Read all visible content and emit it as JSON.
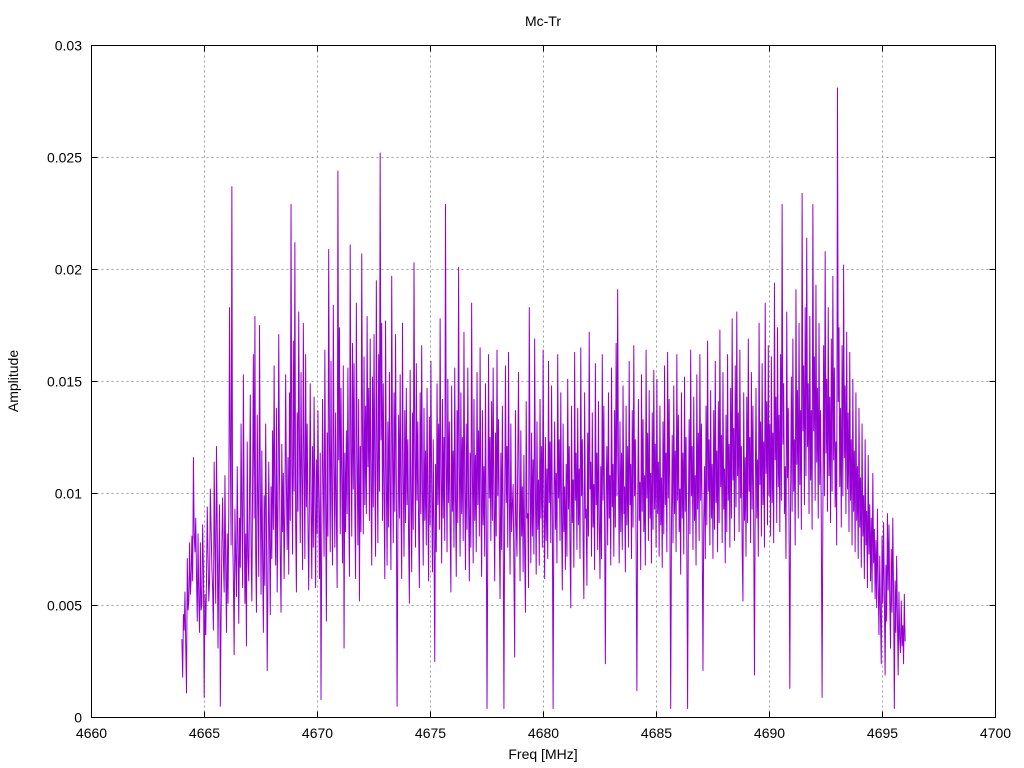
{
  "chart_data": {
    "type": "line",
    "title": "Mc-Tr",
    "xlabel": "Freq [MHz]",
    "ylabel": "Amplitude",
    "xlim": [
      4660,
      4700
    ],
    "ylim": [
      0,
      0.03
    ],
    "xticks": [
      4660,
      4665,
      4670,
      4675,
      4680,
      4685,
      4690,
      4695,
      4700
    ],
    "yticks": [
      0,
      0.005,
      0.01,
      0.015,
      0.02,
      0.025,
      0.03
    ],
    "xtick_labels": [
      "4660",
      "4665",
      "4670",
      "4675",
      "4680",
      "4685",
      "4690",
      "4695",
      "4700"
    ],
    "ytick_labels": [
      "0",
      "0.005",
      "0.01",
      "0.015",
      "0.02",
      "0.025",
      "0.03"
    ],
    "grid": true,
    "legend": "none",
    "line_color": "#9400d3",
    "series": [
      {
        "x_start": 4664.0,
        "x_end": 4696.0,
        "x_step": 0.02,
        "values": [
          0.0035,
          0.0018,
          0.0046,
          0.0039,
          0.0056,
          0.0032,
          0.0011,
          0.0071,
          0.0048,
          0.0052,
          0.0078,
          0.0055,
          0.0062,
          0.0081,
          0.0061,
          0.0116,
          0.0082,
          0.0074,
          0.0089,
          0.0063,
          0.0043,
          0.0082,
          0.0052,
          0.0038,
          0.0078,
          0.0048,
          0.0051,
          0.0086,
          0.0067,
          0.0009,
          0.0055,
          0.0037,
          0.0061,
          0.0094,
          0.0072,
          0.0052,
          0.0061,
          0.0102,
          0.0085,
          0.0067,
          0.0057,
          0.0039,
          0.0114,
          0.0078,
          0.0051,
          0.0121,
          0.0085,
          0.0031,
          0.0068,
          0.0095,
          0.0005,
          0.0045,
          0.0077,
          0.0098,
          0.0071,
          0.0056,
          0.0108,
          0.0068,
          0.0038,
          0.0082,
          0.0051,
          0.0091,
          0.0183,
          0.0121,
          0.0077,
          0.0237,
          0.0081,
          0.0062,
          0.0028,
          0.0093,
          0.0071,
          0.0054,
          0.0112,
          0.0078,
          0.0042,
          0.0089,
          0.0067,
          0.0131,
          0.0092,
          0.0058,
          0.0153,
          0.0095,
          0.0051,
          0.0082,
          0.0032,
          0.0123,
          0.0072,
          0.0061,
          0.0098,
          0.0144,
          0.0076,
          0.0052,
          0.0105,
          0.0162,
          0.0089,
          0.0179,
          0.0073,
          0.0047,
          0.0135,
          0.0097,
          0.0063,
          0.0175,
          0.0104,
          0.0055,
          0.0119,
          0.0072,
          0.0038,
          0.0099,
          0.0059,
          0.0131,
          0.0087,
          0.0021,
          0.0062,
          0.0114,
          0.0082,
          0.0046,
          0.0103,
          0.0071,
          0.0128,
          0.0084,
          0.0157,
          0.0096,
          0.0068,
          0.0138,
          0.0056,
          0.0095,
          0.0171,
          0.0108,
          0.0072,
          0.0047,
          0.0122,
          0.0083,
          0.0109,
          0.0062,
          0.0091,
          0.0153,
          0.0104,
          0.0075,
          0.0116,
          0.0064,
          0.0145,
          0.0088,
          0.0229,
          0.0112,
          0.0073,
          0.0168,
          0.0101,
          0.0212,
          0.0087,
          0.0056,
          0.0136,
          0.0092,
          0.0181,
          0.0121,
          0.0078,
          0.0154,
          0.0106,
          0.0066,
          0.0176,
          0.0115,
          0.0071,
          0.0162,
          0.0094,
          0.0131,
          0.0087,
          0.0057,
          0.0102,
          0.0149,
          0.0093,
          0.0062,
          0.0121,
          0.0076,
          0.0143,
          0.0098,
          0.0058,
          0.0115,
          0.0082,
          0.0137,
          0.0096,
          0.0062,
          0.0118,
          0.0008,
          0.0082,
          0.0142,
          0.0105,
          0.0072,
          0.0164,
          0.0098,
          0.0043,
          0.0127,
          0.0081,
          0.0209,
          0.0122,
          0.0074,
          0.0159,
          0.0097,
          0.0068,
          0.0184,
          0.0114,
          0.0076,
          0.0136,
          0.0091,
          0.0058,
          0.0244,
          0.0115,
          0.0174,
          0.0082,
          0.0147,
          0.0105,
          0.0069,
          0.0157,
          0.0031,
          0.0118,
          0.0083,
          0.0128,
          0.0091,
          0.0156,
          0.0097,
          0.0063,
          0.0211,
          0.0121,
          0.0081,
          0.0167,
          0.0102,
          0.0158,
          0.0094,
          0.0062,
          0.0185,
          0.0117,
          0.0077,
          0.0142,
          0.0052,
          0.0121,
          0.0083,
          0.0207,
          0.0128,
          0.0082,
          0.0161,
          0.0095,
          0.0139,
          0.0091,
          0.0179,
          0.0112,
          0.0147,
          0.0088,
          0.0169,
          0.0104,
          0.0068,
          0.0152,
          0.0094,
          0.0171,
          0.0109,
          0.0072,
          0.0195,
          0.0118,
          0.0078,
          0.0162,
          0.0101,
          0.0252,
          0.0124,
          0.0176,
          0.0088,
          0.0149,
          0.0098,
          0.0062,
          0.0177,
          0.0107,
          0.0068,
          0.0132,
          0.0085,
          0.0154,
          0.0099,
          0.0066,
          0.0197,
          0.0121,
          0.0078,
          0.0145,
          0.0092,
          0.0171,
          0.0106,
          0.0005,
          0.0082,
          0.0135,
          0.0089,
          0.0153,
          0.0094,
          0.0062,
          0.0176,
          0.0109,
          0.0072,
          0.0137,
          0.0087,
          0.0147,
          0.0095,
          0.0124,
          0.0079,
          0.0051,
          0.0155,
          0.0099,
          0.0065,
          0.0136,
          0.0084,
          0.0203,
          0.0118,
          0.0076,
          0.0158,
          0.0097,
          0.0132,
          0.0085,
          0.0058,
          0.0145,
          0.0091,
          0.0166,
          0.0101,
          0.0068,
          0.0138,
          0.0088,
          0.0119,
          0.0077,
          0.0147,
          0.0093,
          0.0061,
          0.0134,
          0.0086,
          0.0159,
          0.0102,
          0.0065,
          0.0124,
          0.0081,
          0.0025,
          0.0113,
          0.0074,
          0.0149,
          0.0095,
          0.0131,
          0.0084,
          0.0178,
          0.0108,
          0.0069,
          0.0142,
          0.0089,
          0.0125,
          0.0079,
          0.0229,
          0.0115,
          0.0074,
          0.0151,
          0.0096,
          0.0132,
          0.0085,
          0.0056,
          0.0148,
          0.0092,
          0.0119,
          0.0076,
          0.0156,
          0.0098,
          0.0063,
          0.0137,
          0.0087,
          0.0201,
          0.0113,
          0.0072,
          0.0145,
          0.0091,
          0.0125,
          0.0079,
          0.0172,
          0.0103,
          0.0066,
          0.0131,
          0.0084,
          0.0156,
          0.0096,
          0.0061,
          0.0118,
          0.0076,
          0.0185,
          0.0109,
          0.0069,
          0.0142,
          0.0088,
          0.0117,
          0.0074,
          0.0154,
          0.0095,
          0.0128,
          0.0081,
          0.0165,
          0.0099,
          0.0063,
          0.0137,
          0.0086,
          0.0112,
          0.0072,
          0.0149,
          0.0091,
          0.0004,
          0.0078,
          0.0162,
          0.0098,
          0.0125,
          0.0079,
          0.0141,
          0.0088,
          0.0156,
          0.0094,
          0.0061,
          0.0127,
          0.0081,
          0.0164,
          0.0099,
          0.0133,
          0.0084,
          0.0053,
          0.0118,
          0.0075,
          0.0139,
          0.0087,
          0.0004,
          0.0093,
          0.0157,
          0.0096,
          0.0121,
          0.0076,
          0.0163,
          0.0099,
          0.0064,
          0.0131,
          0.0083,
          0.0095,
          0.0104,
          0.0066,
          0.0027,
          0.0137,
          0.0087,
          0.0072,
          0.0114,
          0.0154,
          0.0095,
          0.0061,
          0.0128,
          0.0081,
          0.0103,
          0.0065,
          0.0117,
          0.0074,
          0.0047,
          0.0141,
          0.0089,
          0.0091,
          0.0058,
          0.0183,
          0.0108,
          0.0069,
          0.0127,
          0.0081,
          0.0115,
          0.0073,
          0.0169,
          0.0101,
          0.0064,
          0.0132,
          0.0084,
          0.0106,
          0.0068,
          0.0142,
          0.0089,
          0.0121,
          0.0076,
          0.0164,
          0.0098,
          0.0062,
          0.0125,
          0.0079,
          0.0111,
          0.0071,
          0.0159,
          0.0096,
          0.0123,
          0.0078,
          0.0148,
          0.0091,
          0.0004,
          0.0095,
          0.0132,
          0.0084,
          0.0109,
          0.0069,
          0.0162,
          0.0098,
          0.0124,
          0.0079,
          0.0145,
          0.0089,
          0.0057,
          0.0131,
          0.0083,
          0.0103,
          0.0066,
          0.0113,
          0.0072,
          0.0151,
          0.0093,
          0.0121,
          0.0076,
          0.0049,
          0.0139,
          0.0087,
          0.0106,
          0.0067,
          0.0163,
          0.0097,
          0.0118,
          0.0075,
          0.0138,
          0.0086,
          0.0111,
          0.0071,
          0.0165,
          0.0099,
          0.0124,
          0.0079,
          0.0053,
          0.0145,
          0.0089,
          0.0093,
          0.0059,
          0.0127,
          0.0081,
          0.0172,
          0.0102,
          0.0114,
          0.0072,
          0.0136,
          0.0085,
          0.0104,
          0.0066,
          0.0158,
          0.0095,
          0.0118,
          0.0075,
          0.0141,
          0.0088,
          0.0062,
          0.0112,
          0.0071,
          0.0162,
          0.0097,
          0.0139,
          0.0087,
          0.0024,
          0.0101,
          0.0121,
          0.0077,
          0.0145,
          0.0089,
          0.0108,
          0.0068,
          0.0156,
          0.0094,
          0.0113,
          0.0072,
          0.0137,
          0.0085,
          0.0167,
          0.0099,
          0.0191,
          0.0109,
          0.0069,
          0.0132,
          0.0083,
          0.0118,
          0.0075,
          0.0148,
          0.0091,
          0.0103,
          0.0065,
          0.0139,
          0.0086,
          0.0121,
          0.0076,
          0.0159,
          0.0095,
          0.0113,
          0.0071,
          0.0137,
          0.0085,
          0.0166,
          0.0099,
          0.0124,
          0.0078,
          0.0012,
          0.0091,
          0.0142,
          0.0088,
          0.0105,
          0.0066,
          0.0153,
          0.0092,
          0.0133,
          0.0083,
          0.0108,
          0.0068,
          0.0164,
          0.0098,
          0.0127,
          0.0079,
          0.0146,
          0.0089,
          0.0109,
          0.0069,
          0.0136,
          0.0084,
          0.0155,
          0.0093,
          0.0122,
          0.0076,
          0.0151,
          0.0091,
          0.0114,
          0.0072,
          0.0139,
          0.0086,
          0.0107,
          0.0067,
          0.0132,
          0.0082,
          0.0157,
          0.0095,
          0.0118,
          0.0074,
          0.0163,
          0.0098,
          0.0142,
          0.0087,
          0.0004,
          0.0085,
          0.0126,
          0.0078,
          0.0148,
          0.0091,
          0.0119,
          0.0074,
          0.0162,
          0.0097,
          0.0135,
          0.0083,
          0.0102,
          0.0064,
          0.0145,
          0.0089,
          0.0118,
          0.0073,
          0.0152,
          0.0092,
          0.0125,
          0.0077,
          0.0004,
          0.0089,
          0.0133,
          0.0082,
          0.0164,
          0.0099,
          0.0121,
          0.0075,
          0.0143,
          0.0088,
          0.0108,
          0.0068,
          0.0153,
          0.0093,
          0.0127,
          0.0079,
          0.0162,
          0.0097,
          0.0131,
          0.0081,
          0.0021,
          0.0087,
          0.0112,
          0.0071,
          0.0139,
          0.0086,
          0.0168,
          0.0101,
          0.0124,
          0.0077,
          0.0146,
          0.0089,
          0.0113,
          0.0071,
          0.0137,
          0.0084,
          0.0159,
          0.0096,
          0.0119,
          0.0074,
          0.0141,
          0.0087,
          0.0173,
          0.0103,
          0.0126,
          0.0078,
          0.0154,
          0.0093,
          0.0111,
          0.0069,
          0.0135,
          0.0083,
          0.0162,
          0.0097,
          0.0122,
          0.0076,
          0.0147,
          0.0089,
          0.0178,
          0.0106,
          0.0129,
          0.0079,
          0.0157,
          0.0094,
          0.0181,
          0.0108,
          0.0136,
          0.0083,
          0.0164,
          0.0098,
          0.0121,
          0.0075,
          0.0052,
          0.0145,
          0.0088,
          0.0116,
          0.0072,
          0.0143,
          0.0087,
          0.0169,
          0.0101,
          0.0125,
          0.0078,
          0.0154,
          0.0093,
          0.0139,
          0.0085,
          0.0019,
          0.0098,
          0.0147,
          0.0089,
          0.0115,
          0.0072,
          0.0176,
          0.0104,
          0.0132,
          0.0081,
          0.0158,
          0.0095,
          0.0123,
          0.0076,
          0.0185,
          0.0109,
          0.0141,
          0.0086,
          0.0166,
          0.0099,
          0.0131,
          0.0081,
          0.0161,
          0.0096,
          0.0127,
          0.0078,
          0.0194,
          0.0115,
          0.0143,
          0.0087,
          0.0174,
          0.0103,
          0.0135,
          0.0083,
          0.0162,
          0.0097,
          0.0229,
          0.0122,
          0.0149,
          0.0091,
          0.0112,
          0.0071,
          0.0181,
          0.0107,
          0.0138,
          0.0085,
          0.0013,
          0.0098,
          0.0152,
          0.0092,
          0.0169,
          0.0101,
          0.0124,
          0.0077,
          0.0191,
          0.0113,
          0.0146,
          0.0089,
          0.0176,
          0.0104,
          0.0137,
          0.0084,
          0.0234,
          0.0128,
          0.0157,
          0.0095,
          0.0183,
          0.0108,
          0.0214,
          0.0121,
          0.0149,
          0.0091,
          0.0179,
          0.0106,
          0.0137,
          0.0084,
          0.0229,
          0.0128,
          0.0161,
          0.0097,
          0.0193,
          0.0114,
          0.0147,
          0.0089,
          0.0176,
          0.0104,
          0.0137,
          0.0084,
          0.0009,
          0.0091,
          0.0166,
          0.0099,
          0.0208,
          0.0118,
          0.0151,
          0.0092,
          0.0183,
          0.0108,
          0.0143,
          0.0087,
          0.0169,
          0.0101,
          0.0197,
          0.0115,
          0.0156,
          0.0094,
          0.0123,
          0.0077,
          0.0281,
          0.0141,
          0.0174,
          0.0103,
          0.0138,
          0.0085,
          0.0166,
          0.0099,
          0.0202,
          0.0116,
          0.0148,
          0.0091,
          0.0172,
          0.0102,
          0.0136,
          0.0083,
          0.0163,
          0.0097,
          0.0124,
          0.0077,
          0.0151,
          0.0092,
          0.0119,
          0.0074,
          0.0145,
          0.0088,
          0.0112,
          0.0071,
          0.0138,
          0.0085,
          0.0107,
          0.0067,
          0.0131,
          0.0081,
          0.0099,
          0.0062,
          0.0124,
          0.0077,
          0.0092,
          0.0058,
          0.0117,
          0.0073,
          0.0095,
          0.0061,
          0.0089,
          0.0056,
          0.0109,
          0.0069,
          0.0084,
          0.0053,
          0.0079,
          0.0049,
          0.0093,
          0.0059,
          0.0037,
          0.0072,
          0.0045,
          0.0024,
          0.0081,
          0.0051,
          0.0087,
          0.0054,
          0.0019,
          0.0068,
          0.0043,
          0.0091,
          0.0057,
          0.0086,
          0.0054,
          0.0031,
          0.0075,
          0.0047,
          0.0089,
          0.0055,
          0.0004,
          0.0061,
          0.0038,
          0.0072,
          0.0045,
          0.0019,
          0.0056,
          0.0035,
          0.0029,
          0.0052,
          0.0032,
          0.0041,
          0.0024,
          0.0055,
          0.0034
        ]
      }
    ]
  }
}
